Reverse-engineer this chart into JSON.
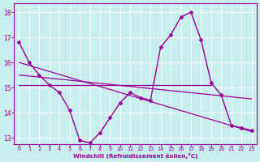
{
  "xlabel": "Windchill (Refroidissement éolien,°C)",
  "background_color": "#c8eef0",
  "line_color": "#990099",
  "xlim": [
    -0.5,
    23.5
  ],
  "ylim": [
    12.75,
    18.35
  ],
  "yticks": [
    13,
    14,
    15,
    16,
    17,
    18
  ],
  "xticks": [
    0,
    1,
    2,
    3,
    4,
    5,
    6,
    7,
    8,
    9,
    10,
    11,
    12,
    13,
    14,
    15,
    16,
    17,
    18,
    19,
    20,
    21,
    22,
    23
  ],
  "line1_x": [
    0,
    1,
    2,
    3,
    4,
    5,
    6,
    7,
    8,
    9,
    10,
    11,
    12,
    13,
    14,
    15,
    16,
    17,
    18,
    19,
    20,
    21,
    22,
    23
  ],
  "line1_y": [
    16.8,
    16.0,
    15.5,
    15.1,
    14.8,
    14.1,
    12.9,
    12.8,
    13.2,
    13.8,
    14.4,
    14.8,
    14.6,
    14.5,
    16.6,
    17.1,
    17.8,
    18.0,
    16.9,
    15.2,
    14.7,
    13.5,
    13.4,
    13.3
  ],
  "line2_x": [
    0,
    19
  ],
  "line2_y": [
    15.1,
    15.1
  ],
  "line3_x": [
    0,
    23
  ],
  "line3_y": [
    16.0,
    13.25
  ],
  "line4_x": [
    0,
    23
  ],
  "line4_y": [
    15.5,
    14.55
  ]
}
